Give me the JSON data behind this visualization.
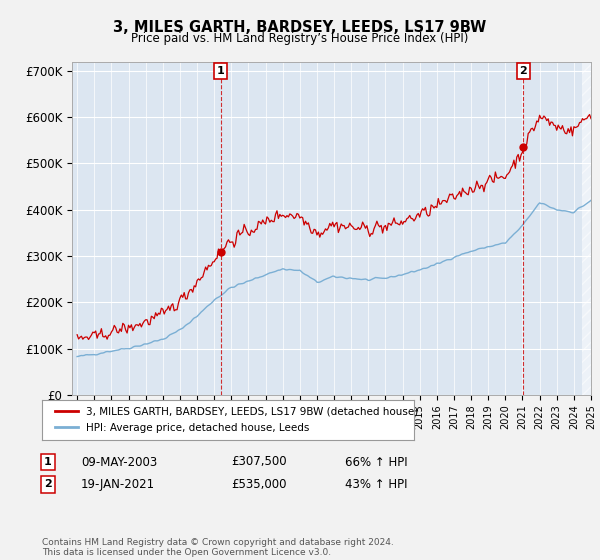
{
  "title": "3, MILES GARTH, BARDSEY, LEEDS, LS17 9BW",
  "subtitle": "Price paid vs. HM Land Registry’s House Price Index (HPI)",
  "ylim": [
    0,
    720000
  ],
  "yticks": [
    0,
    100000,
    200000,
    300000,
    400000,
    500000,
    600000,
    700000
  ],
  "ytick_labels": [
    "£0",
    "£100K",
    "£200K",
    "£300K",
    "£400K",
    "£500K",
    "£600K",
    "£700K"
  ],
  "hpi_color": "#7bafd4",
  "price_color": "#cc0000",
  "sale1_date": 2003.37,
  "sale1_price": 307500,
  "sale2_date": 2021.05,
  "sale2_price": 535000,
  "legend_entries": [
    "3, MILES GARTH, BARDSEY, LEEDS, LS17 9BW (detached house)",
    "HPI: Average price, detached house, Leeds"
  ],
  "table_rows": [
    [
      "1",
      "09-MAY-2003",
      "£307,500",
      "66% ↑ HPI"
    ],
    [
      "2",
      "19-JAN-2021",
      "£535,000",
      "43% ↑ HPI"
    ]
  ],
  "footnote": "Contains HM Land Registry data © Crown copyright and database right 2024.\nThis data is licensed under the Open Government Licence v3.0.",
  "plot_bg_color": "#dce6f1",
  "fig_bg_color": "#f2f2f2"
}
